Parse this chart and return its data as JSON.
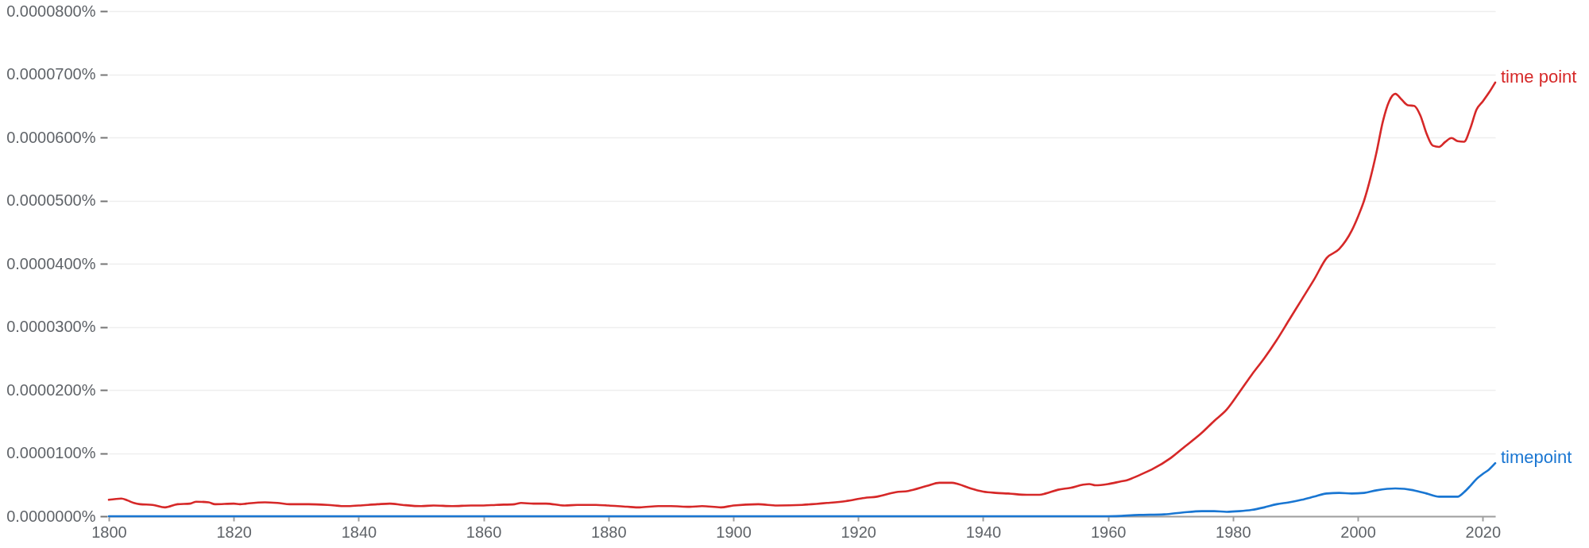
{
  "chart_data": {
    "type": "line",
    "xlim": [
      1800,
      2022
    ],
    "xticks": [
      1800,
      1820,
      1840,
      1860,
      1880,
      1900,
      1920,
      1940,
      1960,
      1980,
      2000,
      2020
    ],
    "ylim": [
      0,
      8e-05
    ],
    "yticks": [
      {
        "value": 0,
        "label": "0.0000000%"
      },
      {
        "value": 1e-05,
        "label": "0.0000100%"
      },
      {
        "value": 2e-05,
        "label": "0.0000200%"
      },
      {
        "value": 3e-05,
        "label": "0.0000300%"
      },
      {
        "value": 4e-05,
        "label": "0.0000400%"
      },
      {
        "value": 5e-05,
        "label": "0.0000500%"
      },
      {
        "value": 6e-05,
        "label": "0.0000600%"
      },
      {
        "value": 7e-05,
        "label": "0.0000700%"
      },
      {
        "value": 8e-05,
        "label": "0.0000800%"
      }
    ],
    "grid": "y",
    "series": [
      {
        "name": "time point",
        "color": "#d62828",
        "x": [
          1800,
          1802,
          1803,
          1804,
          1805,
          1807,
          1809,
          1811,
          1813,
          1814,
          1816,
          1817,
          1820,
          1821,
          1822,
          1825,
          1827,
          1829,
          1832,
          1835,
          1838,
          1840,
          1843,
          1845,
          1847,
          1850,
          1852,
          1855,
          1858,
          1860,
          1862,
          1865,
          1866,
          1868,
          1870,
          1873,
          1875,
          1878,
          1880,
          1883,
          1885,
          1888,
          1890,
          1893,
          1895,
          1898,
          1900,
          1904,
          1907,
          1911,
          1915,
          1918,
          1921,
          1923,
          1926,
          1928,
          1931,
          1933,
          1935,
          1936,
          1938,
          1940,
          1942,
          1944,
          1947,
          1949,
          1950,
          1952,
          1954,
          1956,
          1957,
          1958,
          1960,
          1962,
          1963,
          1965,
          1967,
          1970,
          1972,
          1975,
          1977,
          1979,
          1981,
          1983,
          1985,
          1987,
          1989,
          1991,
          1993,
          1995,
          1997,
          1999,
          2000,
          2001,
          2002,
          2003,
          2004,
          2005,
          2006,
          2007,
          2008,
          2009,
          2010,
          2011,
          2012,
          2013,
          2014,
          2015,
          2016,
          2017,
          2018,
          2019,
          2020,
          2021,
          2022
        ],
        "values": [
          2.6e-06,
          2.8e-06,
          2.5e-06,
          2.1e-06,
          1.9e-06,
          1.8e-06,
          1.4e-06,
          1.9e-06,
          2e-06,
          2.3e-06,
          2.2e-06,
          1.9e-06,
          2e-06,
          1.9e-06,
          2e-06,
          2.2e-06,
          2.1e-06,
          1.9e-06,
          1.9e-06,
          1.8e-06,
          1.6e-06,
          1.7e-06,
          1.9e-06,
          2e-06,
          1.8e-06,
          1.6e-06,
          1.7e-06,
          1.6e-06,
          1.7e-06,
          1.7e-06,
          1.8e-06,
          1.9e-06,
          2.1e-06,
          2e-06,
          2e-06,
          1.7e-06,
          1.8e-06,
          1.8e-06,
          1.7e-06,
          1.5e-06,
          1.4e-06,
          1.6e-06,
          1.6e-06,
          1.5e-06,
          1.6e-06,
          1.4e-06,
          1.7e-06,
          1.9e-06,
          1.7e-06,
          1.8e-06,
          2.1e-06,
          2.4e-06,
          2.9e-06,
          3.1e-06,
          3.8e-06,
          4e-06,
          4.8e-06,
          5.3e-06,
          5.3e-06,
          5.1e-06,
          4.4e-06,
          3.9e-06,
          3.7e-06,
          3.6e-06,
          3.4e-06,
          3.4e-06,
          3.6e-06,
          4.2e-06,
          4.5e-06,
          5e-06,
          5.1e-06,
          4.9e-06,
          5.1e-06,
          5.5e-06,
          5.7e-06,
          6.5e-06,
          7.4e-06,
          9.2e-06,
          1.08e-05,
          1.32e-05,
          1.51e-05,
          1.69e-05,
          1.96e-05,
          2.24e-05,
          2.5e-05,
          2.79e-05,
          3.11e-05,
          3.43e-05,
          3.75e-05,
          4.09e-05,
          4.23e-05,
          4.52e-05,
          4.74e-05,
          5e-05,
          5.35e-05,
          5.77e-05,
          6.25e-05,
          6.57e-05,
          6.69e-05,
          6.6e-05,
          6.51e-05,
          6.5e-05,
          6.35e-05,
          6.06e-05,
          5.87e-05,
          5.85e-05,
          5.93e-05,
          5.99e-05,
          5.94e-05,
          5.93e-05,
          6.14e-05,
          6.44e-05,
          6.57e-05,
          6.71e-05,
          6.87e-05
        ]
      },
      {
        "name": "timepoint",
        "color": "#1976d2",
        "x": [
          1800,
          1850,
          1900,
          1950,
          1960,
          1965,
          1969,
          1972,
          1975,
          1977,
          1979,
          1981,
          1983,
          1985,
          1987,
          1989,
          1991,
          1993,
          1995,
          1997,
          1999,
          2001,
          2003,
          2006,
          2009,
          2011,
          2013,
          2016,
          2017,
          2018,
          2019,
          2020,
          2021,
          2022
        ],
        "values": [
          0,
          0,
          0,
          0,
          0,
          2e-07,
          3e-07,
          6e-07,
          8e-07,
          8e-07,
          7e-07,
          8e-07,
          1e-06,
          1.4e-06,
          1.9e-06,
          2.2e-06,
          2.6e-06,
          3.1e-06,
          3.6e-06,
          3.7e-06,
          3.6e-06,
          3.7e-06,
          4.1e-06,
          4.4e-06,
          4.1e-06,
          3.6e-06,
          3.1e-06,
          3.1e-06,
          3.8e-06,
          4.8e-06,
          5.9e-06,
          6.7e-06,
          7.4e-06,
          8.4e-06
        ]
      }
    ]
  }
}
